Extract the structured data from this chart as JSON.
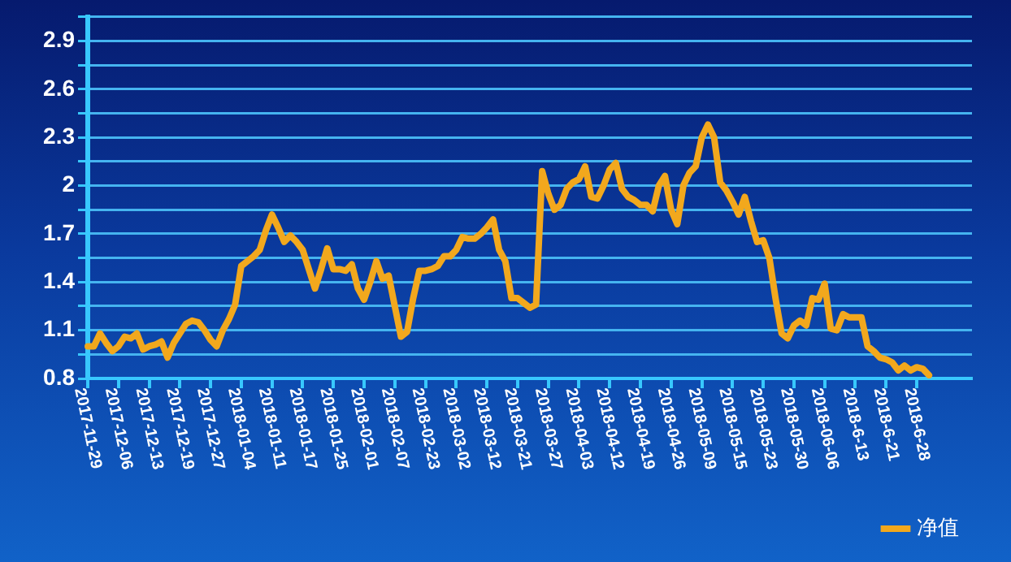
{
  "chart_data": {
    "type": "line",
    "categories": [
      "2017-11-29",
      null,
      null,
      null,
      null,
      "2017-12-06",
      null,
      null,
      null,
      null,
      "2017-12-13",
      null,
      null,
      null,
      null,
      "2017-12-19",
      null,
      null,
      null,
      null,
      "2017-12-27",
      null,
      null,
      null,
      null,
      "2018-01-04",
      null,
      null,
      null,
      null,
      "2018-01-11",
      null,
      null,
      null,
      null,
      "2018-01-17",
      null,
      null,
      null,
      null,
      "2018-01-25",
      null,
      null,
      null,
      null,
      "2018-02-01",
      null,
      null,
      null,
      null,
      "2018-02-07",
      null,
      null,
      null,
      null,
      "2018-02-23",
      null,
      null,
      null,
      null,
      "2018-03-02",
      null,
      null,
      null,
      null,
      "2018-03-12",
      null,
      null,
      null,
      null,
      "2018-03-21",
      null,
      null,
      null,
      null,
      "2018-03-27",
      null,
      null,
      null,
      null,
      "2018-04-03",
      null,
      null,
      null,
      null,
      "2018-04-12",
      null,
      null,
      null,
      null,
      "2018-04-19",
      null,
      null,
      null,
      null,
      "2018-04-26",
      null,
      null,
      null,
      null,
      "2018-05-09",
      null,
      null,
      null,
      null,
      "2018-05-15",
      null,
      null,
      null,
      null,
      "2018-05-23",
      null,
      null,
      null,
      null,
      "2018-05-30",
      null,
      null,
      null,
      null,
      "2018-06-06",
      null,
      null,
      null,
      null,
      "2018-6-13",
      null,
      null,
      null,
      null,
      "2018-6-21",
      null,
      null,
      null,
      null,
      "2018-6-28",
      null,
      null,
      null,
      null,
      null,
      null,
      null,
      null,
      null
    ],
    "series": [
      {
        "name": "净值",
        "color": "#f2a81d",
        "values": [
          1.0,
          1.0,
          1.08,
          1.02,
          0.97,
          1.0,
          1.06,
          1.05,
          1.08,
          0.98,
          1.0,
          1.01,
          1.03,
          0.93,
          1.02,
          1.08,
          1.14,
          1.16,
          1.15,
          1.1,
          1.04,
          1.0,
          1.1,
          1.17,
          1.26,
          1.5,
          1.53,
          1.56,
          1.6,
          1.72,
          1.82,
          1.74,
          1.65,
          1.69,
          1.65,
          1.6,
          1.48,
          1.36,
          1.48,
          1.61,
          1.48,
          1.48,
          1.47,
          1.51,
          1.36,
          1.29,
          1.4,
          1.53,
          1.42,
          1.44,
          1.25,
          1.06,
          1.09,
          1.3,
          1.47,
          1.47,
          1.48,
          1.5,
          1.56,
          1.56,
          1.6,
          1.68,
          1.67,
          1.67,
          1.7,
          1.74,
          1.79,
          1.6,
          1.53,
          1.3,
          1.3,
          1.27,
          1.24,
          1.26,
          2.09,
          1.95,
          1.85,
          1.88,
          1.98,
          2.02,
          2.04,
          2.12,
          1.93,
          1.92,
          2.0,
          2.1,
          2.14,
          1.98,
          1.93,
          1.91,
          1.88,
          1.88,
          1.84,
          2.0,
          2.06,
          1.85,
          1.76,
          2.0,
          2.08,
          2.12,
          2.3,
          2.38,
          2.3,
          2.02,
          1.97,
          1.9,
          1.82,
          1.93,
          1.78,
          1.65,
          1.66,
          1.55,
          1.3,
          1.08,
          1.05,
          1.13,
          1.16,
          1.13,
          1.3,
          1.29,
          1.39,
          1.11,
          1.1,
          1.2,
          1.18,
          1.18,
          1.18,
          1.0,
          0.97,
          0.93,
          0.92,
          0.9,
          0.85,
          0.88,
          0.85,
          0.87,
          0.86,
          0.82,
          null,
          null,
          null,
          null,
          null,
          null,
          null
        ]
      }
    ],
    "ylim": [
      0.8,
      3.05
    ],
    "yticks": [
      0.8,
      {
        "value": 0.95,
        "label": null
      },
      1.1,
      {
        "value": 1.25,
        "label": null
      },
      1.4,
      {
        "value": 1.55,
        "label": null
      },
      1.7,
      {
        "value": 1.85,
        "label": null
      },
      2,
      {
        "value": 2.15,
        "label": null
      },
      2.3,
      {
        "value": 2.45,
        "label": null
      },
      2.6,
      {
        "value": 2.75,
        "label": null
      },
      2.9,
      {
        "value": 3.05,
        "label": null
      }
    ],
    "grid": "y",
    "legend": "bottom right",
    "marker": "none",
    "line_style": "solid"
  }
}
